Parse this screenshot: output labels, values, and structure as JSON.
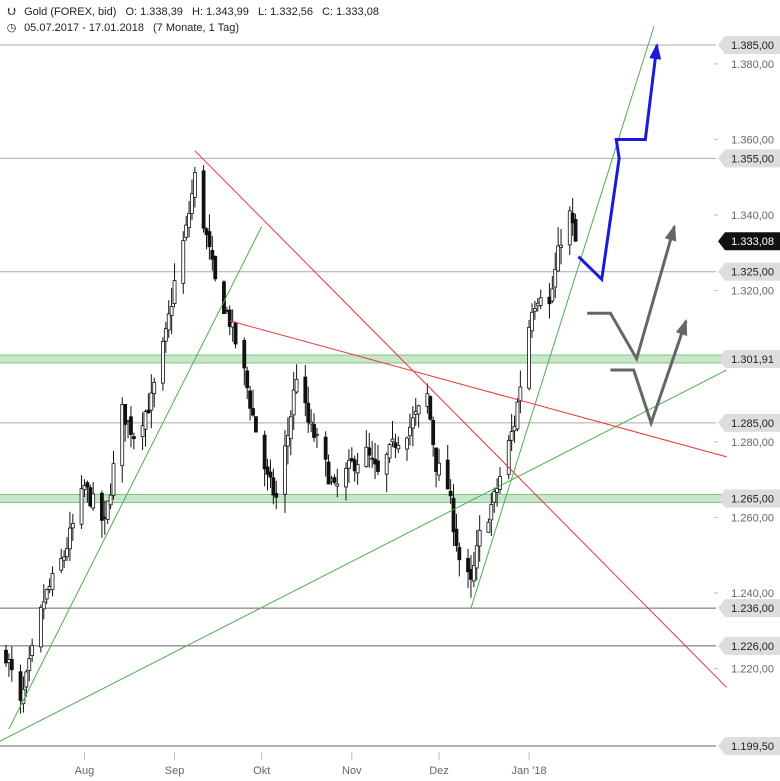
{
  "header": {
    "expand_icon": "double-chevron-down-icon",
    "instrument": "Gold (FOREX, bid)",
    "open": "O: 1.338,39",
    "high": "H: 1.343,99",
    "low": "L: 1.332,56",
    "close": "C: 1.333,08",
    "clock_icon": "clock-icon",
    "date_range": "05.07.2017 - 17.01.2018",
    "period": "(7 Monate, 1 Tag)"
  },
  "chart_data": {
    "type": "candlestick",
    "ylim": [
      1199.5,
      1390.0
    ],
    "y_ticks": [
      {
        "value": 1380,
        "label": "1.380,00"
      },
      {
        "value": 1360,
        "label": "1.360,00"
      },
      {
        "value": 1340,
        "label": "1.340,00"
      },
      {
        "value": 1320,
        "label": "1.320,00"
      },
      {
        "value": 1280,
        "label": "1.280,00"
      },
      {
        "value": 1260,
        "label": "1.260,00"
      },
      {
        "value": 1240,
        "label": "1.240,00"
      },
      {
        "value": 1220,
        "label": "1.220,00"
      }
    ],
    "x_ticks": [
      {
        "date": "2017-08-01",
        "label": "Aug"
      },
      {
        "date": "2017-09-01",
        "label": "Sep"
      },
      {
        "date": "2017-10-01",
        "label": "Okt"
      },
      {
        "date": "2017-11-01",
        "label": "Nov"
      },
      {
        "date": "2017-12-01",
        "label": "Dez"
      },
      {
        "date": "2018-01-01",
        "label": "Jan '18"
      }
    ],
    "x_range": [
      "2017-07-05",
      "2018-01-17"
    ],
    "close_key_points": [
      {
        "date": "2017-07-05",
        "value": 1224
      },
      {
        "date": "2017-07-10",
        "value": 1210
      },
      {
        "date": "2017-07-18",
        "value": 1238
      },
      {
        "date": "2017-07-25",
        "value": 1250
      },
      {
        "date": "2017-08-01",
        "value": 1268
      },
      {
        "date": "2017-08-08",
        "value": 1258
      },
      {
        "date": "2017-08-14",
        "value": 1288
      },
      {
        "date": "2017-08-18",
        "value": 1282
      },
      {
        "date": "2017-08-24",
        "value": 1291
      },
      {
        "date": "2017-08-29",
        "value": 1308
      },
      {
        "date": "2017-09-01",
        "value": 1322
      },
      {
        "date": "2017-09-05",
        "value": 1336
      },
      {
        "date": "2017-09-08",
        "value": 1350
      },
      {
        "date": "2017-09-11",
        "value": 1338
      },
      {
        "date": "2017-09-15",
        "value": 1322
      },
      {
        "date": "2017-09-20",
        "value": 1312
      },
      {
        "date": "2017-09-25",
        "value": 1298
      },
      {
        "date": "2017-09-29",
        "value": 1283
      },
      {
        "date": "2017-10-03",
        "value": 1270
      },
      {
        "date": "2017-10-06",
        "value": 1265
      },
      {
        "date": "2017-10-10",
        "value": 1282
      },
      {
        "date": "2017-10-13",
        "value": 1298
      },
      {
        "date": "2017-10-17",
        "value": 1285
      },
      {
        "date": "2017-10-20",
        "value": 1280
      },
      {
        "date": "2017-10-26",
        "value": 1267
      },
      {
        "date": "2017-11-01",
        "value": 1274
      },
      {
        "date": "2017-11-06",
        "value": 1277
      },
      {
        "date": "2017-11-10",
        "value": 1271
      },
      {
        "date": "2017-11-16",
        "value": 1280
      },
      {
        "date": "2017-11-21",
        "value": 1284
      },
      {
        "date": "2017-11-27",
        "value": 1292
      },
      {
        "date": "2017-11-30",
        "value": 1274
      },
      {
        "date": "2017-12-04",
        "value": 1268
      },
      {
        "date": "2017-12-08",
        "value": 1249
      },
      {
        "date": "2017-12-12",
        "value": 1242
      },
      {
        "date": "2017-12-15",
        "value": 1255
      },
      {
        "date": "2017-12-20",
        "value": 1265
      },
      {
        "date": "2017-12-27",
        "value": 1285
      },
      {
        "date": "2018-01-02",
        "value": 1316
      },
      {
        "date": "2018-01-05",
        "value": 1320
      },
      {
        "date": "2018-01-08",
        "value": 1316
      },
      {
        "date": "2018-01-12",
        "value": 1334
      },
      {
        "date": "2018-01-15",
        "value": 1340
      },
      {
        "date": "2018-01-17",
        "value": 1333.08
      }
    ],
    "horizontal_levels": [
      {
        "value": 1385.0,
        "label": "1.385,00",
        "style": "resistance"
      },
      {
        "value": 1355.0,
        "label": "1.355,00",
        "style": "resistance"
      },
      {
        "value": 1333.08,
        "label": "1.333,08",
        "style": "current"
      },
      {
        "value": 1325.0,
        "label": "1.325,00",
        "style": "level"
      },
      {
        "value": 1301.91,
        "label": "1.301,91",
        "style": "green-zone"
      },
      {
        "value": 1285.0,
        "label": "1.285,00",
        "style": "level"
      },
      {
        "value": 1265.0,
        "label": "1.265,00",
        "style": "green-zone"
      },
      {
        "value": 1236.0,
        "label": "1.236,00",
        "style": "support"
      },
      {
        "value": 1226.0,
        "label": "1.226,00",
        "style": "support"
      },
      {
        "value": 1199.5,
        "label": "1.199,50",
        "style": "support"
      }
    ],
    "trendlines": [
      {
        "color": "#4caf50",
        "from": {
          "date": "2017-07-06",
          "value": 1204
        },
        "to": {
          "date": "2017-10-01",
          "value": 1337
        }
      },
      {
        "color": "#4caf50",
        "from": {
          "date": "2017-07-01",
          "value": 1200
        },
        "to": {
          "date": "2018-03-10",
          "value": 1299
        }
      },
      {
        "color": "#4caf50",
        "from": {
          "date": "2017-12-12",
          "value": 1236
        },
        "to": {
          "date": "2018-02-13",
          "value": 1390
        }
      },
      {
        "color": "#e53935",
        "from": {
          "date": "2017-09-08",
          "value": 1357
        },
        "to": {
          "date": "2018-03-10",
          "value": 1215
        }
      },
      {
        "color": "#e53935",
        "from": {
          "date": "2017-09-20",
          "value": 1312
        },
        "to": {
          "date": "2018-03-10",
          "value": 1276
        }
      }
    ],
    "scenario_paths": [
      {
        "color": "#1a1adc",
        "points": [
          {
            "date": "2018-01-18",
            "value": 1329
          },
          {
            "date": "2018-01-26",
            "value": 1323
          },
          {
            "date": "2018-02-01",
            "value": 1355
          },
          {
            "date": "2018-01-31",
            "value": 1360
          },
          {
            "date": "2018-02-10",
            "value": 1360
          },
          {
            "date": "2018-02-14",
            "value": 1385
          }
        ]
      },
      {
        "color": "#666666",
        "points": [
          {
            "date": "2018-01-21",
            "value": 1314
          },
          {
            "date": "2018-01-29",
            "value": 1314
          },
          {
            "date": "2018-02-07",
            "value": 1302
          },
          {
            "date": "2018-02-20",
            "value": 1337
          }
        ]
      },
      {
        "color": "#666666",
        "points": [
          {
            "date": "2018-01-29",
            "value": 1299
          },
          {
            "date": "2018-02-06",
            "value": 1299
          },
          {
            "date": "2018-02-12",
            "value": 1285
          },
          {
            "date": "2018-02-24",
            "value": 1312
          }
        ]
      }
    ]
  }
}
